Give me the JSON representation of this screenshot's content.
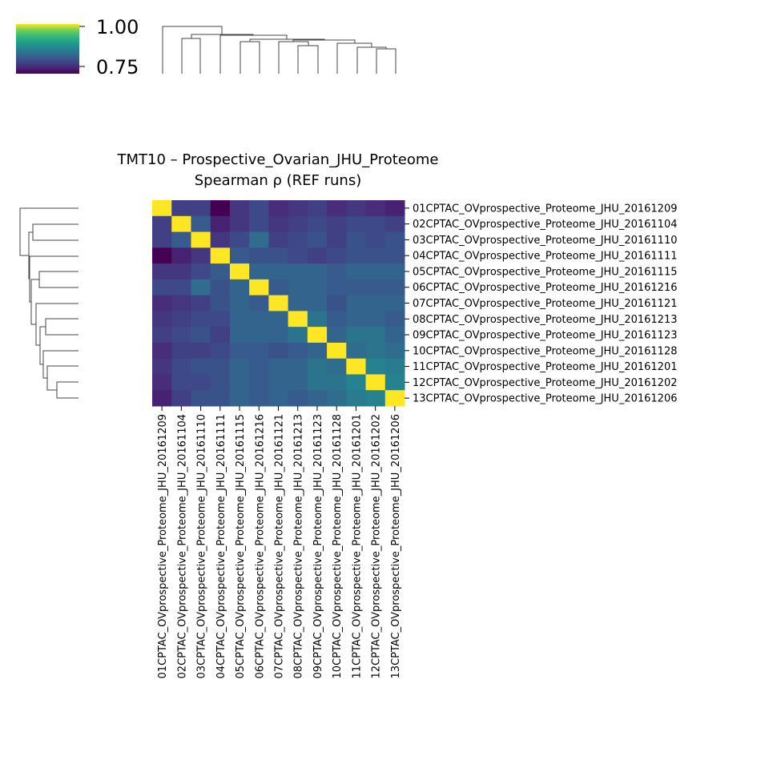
{
  "chart_data": {
    "type": "heatmap",
    "title": "TMT10 – Prospective_Ovarian_JHU_Proteome",
    "subtitle": "Spearman ρ (REF runs)",
    "colormap": "viridis",
    "colorbar": {
      "min": 0.72,
      "max": 1.0,
      "ticks": [
        1.0,
        0.75
      ],
      "tick_labels": [
        "1.00",
        "0.75"
      ],
      "placement": "top-left"
    },
    "row_labels": [
      "01CPTAC_OVprospective_Proteome_JHU_20161209",
      "02CPTAC_OVprospective_Proteome_JHU_20161104",
      "03CPTAC_OVprospective_Proteome_JHU_20161110",
      "04CPTAC_OVprospective_Proteome_JHU_20161111",
      "05CPTAC_OVprospective_Proteome_JHU_20161115",
      "06CPTAC_OVprospective_Proteome_JHU_20161216",
      "07CPTAC_OVprospective_Proteome_JHU_20161121",
      "08CPTAC_OVprospective_Proteome_JHU_20161213",
      "09CPTAC_OVprospective_Proteome_JHU_20161123",
      "10CPTAC_OVprospective_Proteome_JHU_20161128",
      "11CPTAC_OVprospective_Proteome_JHU_20161201",
      "12CPTAC_OVprospective_Proteome_JHU_20161202",
      "13CPTAC_OVprospective_Proteome_JHU_20161206"
    ],
    "col_labels": [
      "01CPTAC_OVprospective_Proteome_JHU_20161209",
      "02CPTAC_OVprospective_Proteome_JHU_20161104",
      "03CPTAC_OVprospective_Proteome_JHU_20161110",
      "04CPTAC_OVprospective_Proteome_JHU_20161111",
      "05CPTAC_OVprospective_Proteome_JHU_20161115",
      "06CPTAC_OVprospective_Proteome_JHU_20161216",
      "07CPTAC_OVprospective_Proteome_JHU_20161121",
      "08CPTAC_OVprospective_Proteome_JHU_20161213",
      "09CPTAC_OVprospective_Proteome_JHU_20161123",
      "10CPTAC_OVprospective_Proteome_JHU_20161128",
      "11CPTAC_OVprospective_Proteome_JHU_20161201",
      "12CPTAC_OVprospective_Proteome_JHU_20161202",
      "13CPTAC_OVprospective_Proteome_JHU_20161206"
    ],
    "values": [
      [
        1.0,
        0.78,
        0.78,
        0.72,
        0.77,
        0.79,
        0.76,
        0.77,
        0.78,
        0.76,
        0.77,
        0.76,
        0.75
      ],
      [
        0.78,
        1.0,
        0.81,
        0.75,
        0.77,
        0.79,
        0.77,
        0.78,
        0.79,
        0.78,
        0.79,
        0.79,
        0.78
      ],
      [
        0.78,
        0.81,
        1.0,
        0.77,
        0.79,
        0.83,
        0.78,
        0.79,
        0.8,
        0.78,
        0.8,
        0.79,
        0.8
      ],
      [
        0.72,
        0.75,
        0.77,
        1.0,
        0.81,
        0.8,
        0.8,
        0.79,
        0.78,
        0.79,
        0.8,
        0.8,
        0.8
      ],
      [
        0.77,
        0.77,
        0.79,
        0.81,
        1.0,
        0.82,
        0.82,
        0.82,
        0.82,
        0.81,
        0.82,
        0.82,
        0.82
      ],
      [
        0.79,
        0.79,
        0.83,
        0.8,
        0.82,
        1.0,
        0.81,
        0.82,
        0.82,
        0.81,
        0.81,
        0.81,
        0.81
      ],
      [
        0.76,
        0.77,
        0.78,
        0.8,
        0.82,
        0.81,
        1.0,
        0.82,
        0.82,
        0.8,
        0.82,
        0.82,
        0.82
      ],
      [
        0.77,
        0.78,
        0.79,
        0.79,
        0.82,
        0.82,
        0.82,
        1.0,
        0.84,
        0.81,
        0.82,
        0.82,
        0.81
      ],
      [
        0.78,
        0.79,
        0.8,
        0.78,
        0.82,
        0.82,
        0.82,
        0.84,
        1.0,
        0.82,
        0.84,
        0.84,
        0.82
      ],
      [
        0.76,
        0.78,
        0.78,
        0.79,
        0.81,
        0.81,
        0.8,
        0.81,
        0.82,
        1.0,
        0.83,
        0.84,
        0.83
      ],
      [
        0.77,
        0.79,
        0.8,
        0.8,
        0.82,
        0.81,
        0.82,
        0.82,
        0.84,
        0.83,
        1.0,
        0.86,
        0.85
      ],
      [
        0.76,
        0.79,
        0.79,
        0.8,
        0.82,
        0.81,
        0.82,
        0.82,
        0.84,
        0.84,
        0.86,
        1.0,
        0.86
      ],
      [
        0.75,
        0.78,
        0.8,
        0.8,
        0.82,
        0.81,
        0.82,
        0.81,
        0.82,
        0.83,
        0.85,
        0.86,
        1.0
      ]
    ]
  }
}
